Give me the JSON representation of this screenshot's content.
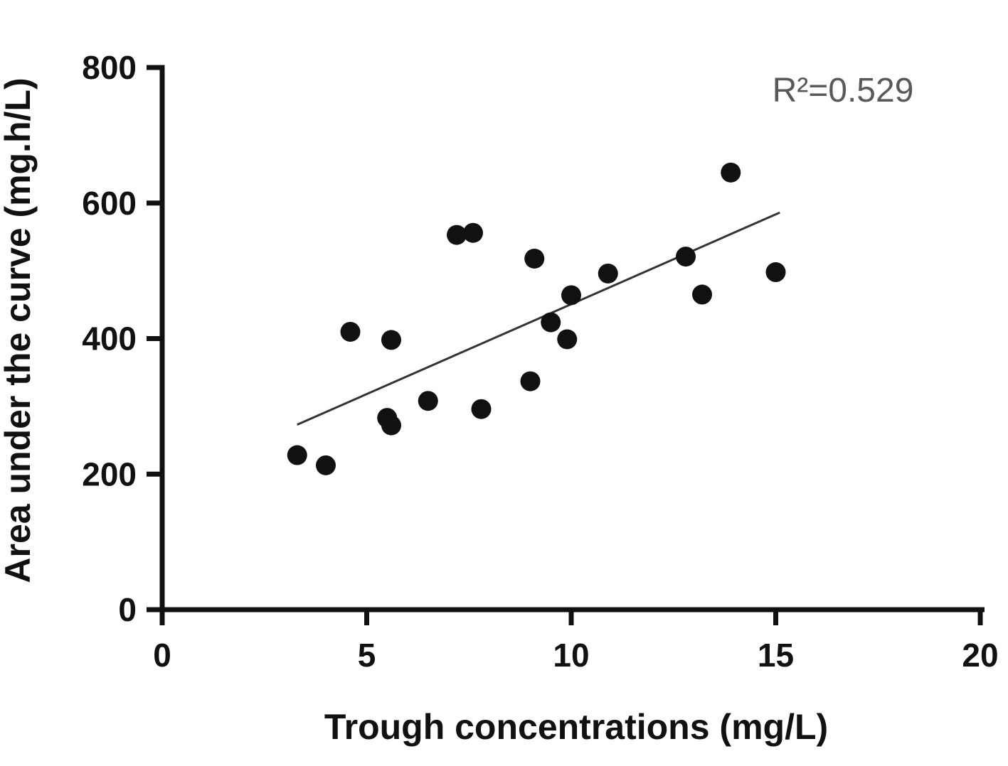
{
  "chart_data": {
    "type": "scatter",
    "title": "",
    "xlabel": "Trough concentrations (mg/L)",
    "ylabel": "Area under the curve (mg.h/L)",
    "annotation": "R²=0.529",
    "xlim": [
      0,
      20
    ],
    "ylim": [
      0,
      800
    ],
    "xticks": [
      0,
      5,
      10,
      15,
      20
    ],
    "yticks": [
      0,
      200,
      400,
      600,
      800
    ],
    "grid": false,
    "legend": "none",
    "point_color": "#111111",
    "axis_color": "#111111",
    "trendline_color": "#333333",
    "annotation_color": "#595959",
    "trendline": {
      "x1": 3.3,
      "y1": 273,
      "x2": 15.1,
      "y2": 586
    },
    "points": [
      [
        3.3,
        228
      ],
      [
        4.0,
        213
      ],
      [
        4.6,
        410
      ],
      [
        5.5,
        283
      ],
      [
        5.6,
        272
      ],
      [
        5.6,
        398
      ],
      [
        6.5,
        308
      ],
      [
        7.2,
        553
      ],
      [
        7.6,
        556
      ],
      [
        7.8,
        296
      ],
      [
        9.0,
        337
      ],
      [
        9.1,
        518
      ],
      [
        9.5,
        424
      ],
      [
        9.9,
        399
      ],
      [
        10.0,
        464
      ],
      [
        10.9,
        496
      ],
      [
        12.8,
        521
      ],
      [
        13.2,
        465
      ],
      [
        13.9,
        645
      ],
      [
        15.0,
        498
      ]
    ]
  }
}
